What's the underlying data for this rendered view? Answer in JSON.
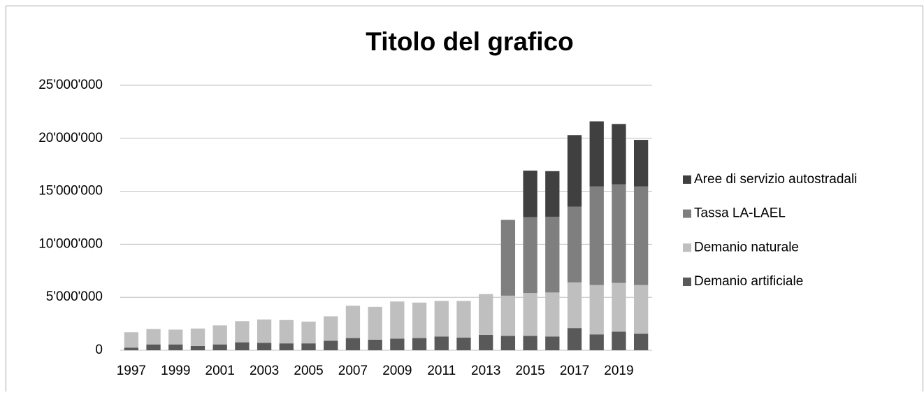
{
  "chart_data": {
    "type": "stacked-bar",
    "title": "Titolo del grafico",
    "categories": [
      "1997",
      null,
      "1999",
      null,
      "2001",
      null,
      "2003",
      null,
      "2005",
      null,
      "2007",
      null,
      "2009",
      null,
      "2011",
      null,
      "2013",
      null,
      "2015",
      null,
      "2017",
      null,
      "2019",
      null
    ],
    "series": [
      {
        "name": "Demanio artificiale",
        "color": "#595959",
        "values": [
          250000,
          550000,
          550000,
          400000,
          550000,
          750000,
          700000,
          650000,
          650000,
          900000,
          1150000,
          1000000,
          1100000,
          1150000,
          1300000,
          1200000,
          1450000,
          1350000,
          1350000,
          1300000,
          2100000,
          1500000,
          1750000,
          1550000
        ]
      },
      {
        "name": "Demanio naturale",
        "color": "#bfbfbf",
        "values": [
          1450000,
          1450000,
          1400000,
          1650000,
          1800000,
          2000000,
          2200000,
          2200000,
          2050000,
          2300000,
          3050000,
          3100000,
          3500000,
          3350000,
          3350000,
          3450000,
          3850000,
          3800000,
          4050000,
          4150000,
          4300000,
          4650000,
          4600000,
          4600000
        ]
      },
      {
        "name": "Tassa LA-LAEL",
        "color": "#7f7f7f",
        "values": [
          null,
          null,
          null,
          null,
          null,
          null,
          null,
          null,
          null,
          null,
          null,
          null,
          null,
          null,
          null,
          null,
          null,
          7150000,
          7150000,
          7150000,
          7150000,
          9300000,
          9300000,
          9300000
        ]
      },
      {
        "name": "Aree di servizio autostradali",
        "color": "#404040",
        "values": [
          null,
          null,
          null,
          null,
          null,
          null,
          null,
          null,
          null,
          null,
          null,
          null,
          null,
          null,
          null,
          null,
          null,
          null,
          4400000,
          4300000,
          6750000,
          6150000,
          5700000,
          4400000
        ]
      }
    ],
    "ylim": [
      0,
      25000000
    ],
    "yticks": [
      0,
      {
        "value": 5000000,
        "label": "5'000'000"
      },
      {
        "value": 10000000,
        "label": "10'000'000"
      },
      {
        "value": 15000000,
        "label": "15'000'000"
      },
      {
        "value": 20000000,
        "label": "20'000'000"
      },
      {
        "value": 25000000,
        "label": "25'000'000"
      }
    ],
    "grid": true,
    "legend": "right"
  }
}
